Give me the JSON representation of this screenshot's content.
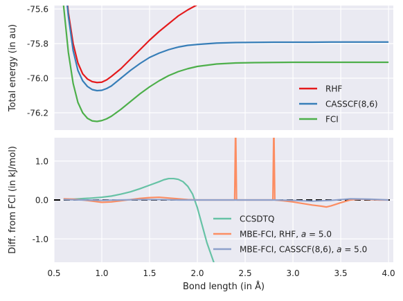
{
  "figure": {
    "xlabel": "Bond length (in Å)",
    "x_ticks": [
      "0.5",
      "1.0",
      "1.5",
      "2.0",
      "2.5",
      "3.0",
      "3.5",
      "4.0"
    ],
    "colors": {
      "panel_bg": "#eaeaf2",
      "grid": "#ffffff",
      "RHF": "#e41a1c",
      "CASSCF": "#377eb8",
      "FCI": "#4daf4a",
      "CCSDTQ": "#66c2a5",
      "MBE_RHF": "#fc8d62",
      "MBE_CASSCF": "#8da0cb",
      "zero_line": "#000000"
    }
  },
  "chart_data": [
    {
      "type": "line",
      "title": "",
      "xlabel": "",
      "ylabel": "Total energy (in au)",
      "xlim": [
        0.5,
        4.05
      ],
      "ylim": [
        -76.3,
        -75.58
      ],
      "y_ticks": [
        -75.6,
        -75.8,
        -76.0,
        -76.2
      ],
      "y_tick_labels": [
        "-75.6",
        "-75.8",
        "-76.0",
        "-76.2"
      ],
      "grid": true,
      "legend": "lower-right",
      "series": [
        {
          "name": "RHF",
          "color_key": "RHF",
          "x": [
            0.6,
            0.65,
            0.7,
            0.75,
            0.8,
            0.85,
            0.9,
            0.95,
            1.0,
            1.05,
            1.1,
            1.2,
            1.3,
            1.4,
            1.5,
            1.6,
            1.7,
            1.8,
            1.9,
            2.0
          ],
          "y": [
            -75.34,
            -75.62,
            -75.8,
            -75.912,
            -75.975,
            -76.005,
            -76.02,
            -76.025,
            -76.023,
            -76.01,
            -75.99,
            -75.945,
            -75.89,
            -75.835,
            -75.78,
            -75.73,
            -75.685,
            -75.64,
            -75.605,
            -75.575
          ]
        },
        {
          "name": "CASSCF(8,6)",
          "color_key": "CASSCF",
          "x": [
            0.6,
            0.65,
            0.7,
            0.75,
            0.8,
            0.85,
            0.9,
            0.95,
            1.0,
            1.05,
            1.1,
            1.2,
            1.3,
            1.4,
            1.5,
            1.6,
            1.7,
            1.8,
            1.9,
            2.0,
            2.2,
            2.4,
            2.6,
            2.8,
            3.0,
            3.2,
            3.4,
            3.6,
            3.8,
            4.0
          ],
          "y": [
            -75.37,
            -75.64,
            -75.84,
            -75.955,
            -76.015,
            -76.048,
            -76.066,
            -76.072,
            -76.07,
            -76.06,
            -76.045,
            -76.0,
            -75.955,
            -75.915,
            -75.88,
            -75.855,
            -75.835,
            -75.82,
            -75.81,
            -75.805,
            -75.797,
            -75.794,
            -75.793,
            -75.792,
            -75.792,
            -75.792,
            -75.791,
            -75.791,
            -75.791,
            -75.791
          ]
        },
        {
          "name": "FCI",
          "color_key": "FCI",
          "x": [
            0.6,
            0.65,
            0.7,
            0.75,
            0.8,
            0.85,
            0.9,
            0.95,
            1.0,
            1.05,
            1.1,
            1.2,
            1.3,
            1.4,
            1.5,
            1.6,
            1.7,
            1.8,
            1.9,
            2.0,
            2.2,
            2.4,
            2.6,
            2.8,
            3.0,
            3.2,
            3.4,
            3.6,
            3.8,
            4.0
          ],
          "y": [
            -75.58,
            -75.85,
            -76.03,
            -76.14,
            -76.2,
            -76.232,
            -76.247,
            -76.25,
            -76.245,
            -76.235,
            -76.22,
            -76.18,
            -76.135,
            -76.09,
            -76.05,
            -76.015,
            -75.985,
            -75.962,
            -75.945,
            -75.932,
            -75.918,
            -75.912,
            -75.91,
            -75.909,
            -75.908,
            -75.908,
            -75.908,
            -75.908,
            -75.908,
            -75.908
          ]
        }
      ]
    },
    {
      "type": "line",
      "title": "",
      "xlabel": "Bond length (in Å)",
      "ylabel": "Diff. from FCI (in kJ/mol)",
      "xlim": [
        0.5,
        4.05
      ],
      "ylim": [
        -1.6,
        1.6
      ],
      "y_ticks": [
        1.0,
        0.0,
        -1.0
      ],
      "y_tick_labels": [
        "1.0",
        "0.0",
        "-1.0"
      ],
      "grid": true,
      "legend": "lower-right",
      "zero_line": "dashed",
      "series": [
        {
          "name": "CCSDTQ",
          "color_key": "CCSDTQ",
          "x": [
            0.6,
            0.7,
            0.8,
            0.9,
            1.0,
            1.1,
            1.2,
            1.3,
            1.4,
            1.5,
            1.6,
            1.65,
            1.7,
            1.75,
            1.8,
            1.85,
            1.9,
            1.95,
            2.0,
            2.05,
            2.1,
            2.15,
            2.2
          ],
          "y": [
            0.01,
            0.02,
            0.035,
            0.05,
            0.07,
            0.1,
            0.15,
            0.21,
            0.29,
            0.38,
            0.47,
            0.52,
            0.55,
            0.55,
            0.53,
            0.47,
            0.35,
            0.15,
            -0.2,
            -0.65,
            -1.1,
            -1.45,
            -1.8
          ]
        },
        {
          "name": "MBE-FCI, RHF, a = 5.0",
          "color_key": "MBE_RHF",
          "x": [
            0.6,
            0.7,
            0.8,
            0.9,
            1.0,
            1.1,
            1.2,
            1.3,
            1.4,
            1.5,
            1.6,
            1.7,
            1.8,
            1.9,
            2.0,
            2.1,
            2.2,
            2.3,
            2.39,
            2.4,
            2.41,
            2.5,
            2.6,
            2.7,
            2.79,
            2.8,
            2.81,
            2.9,
            3.0,
            3.1,
            3.2,
            3.3,
            3.35,
            3.4,
            3.5,
            3.6,
            3.7,
            3.8,
            3.9,
            4.0
          ],
          "y": [
            0.03,
            0.02,
            0.0,
            -0.03,
            -0.06,
            -0.05,
            -0.02,
            0.01,
            0.04,
            0.06,
            0.07,
            0.05,
            0.03,
            0.01,
            0.0,
            0.0,
            0.0,
            0.0,
            0.0,
            2.0,
            0.0,
            0.0,
            0.0,
            0.0,
            0.0,
            2.0,
            0.0,
            -0.02,
            -0.05,
            -0.09,
            -0.13,
            -0.16,
            -0.18,
            -0.15,
            -0.07,
            0.0,
            0.02,
            0.01,
            0.0,
            0.0
          ]
        },
        {
          "name": "MBE-FCI, CASSCF(8,6), a = 5.0",
          "color_key": "MBE_CASSCF",
          "x": [
            0.6,
            0.8,
            1.0,
            1.2,
            1.4,
            1.6,
            1.8,
            2.0,
            2.2,
            2.4,
            2.6,
            2.8,
            3.0,
            3.2,
            3.4,
            3.6,
            3.8,
            4.0
          ],
          "y": [
            0.01,
            0.0,
            -0.01,
            0.0,
            0.01,
            0.01,
            0.0,
            0.0,
            0.0,
            0.0,
            0.0,
            0.0,
            -0.01,
            -0.03,
            -0.01,
            0.03,
            0.02,
            0.0
          ]
        }
      ]
    }
  ]
}
